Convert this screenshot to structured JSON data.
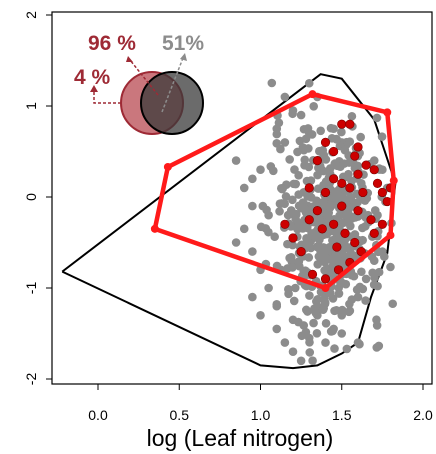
{
  "chart_data": {
    "type": "scatter",
    "title": "",
    "xlabel": "log (Leaf nitrogen)",
    "ylabel": "",
    "xlim": [
      -0.3,
      2.05
    ],
    "ylim": [
      -2.05,
      2.05
    ],
    "xticks": [
      "0.0",
      "0.5",
      "1.0",
      "1.5",
      "2.0"
    ],
    "yticks": [
      "-2",
      "-1",
      "0",
      "1",
      "2"
    ],
    "grid": false,
    "colors": {
      "grey_points": "#8c8c8c",
      "red_points": "#cc0000",
      "red_hull": "#ff1a1a",
      "black_hull": "#000000",
      "annot_red": "#9e2a35",
      "annot_grey": "#8c8c8c"
    },
    "series": [
      {
        "role": "grey points (bulk cloud, approximate)",
        "points": [
          [
            1.35,
            1.1
          ],
          [
            1.2,
            0.95
          ],
          [
            1.25,
            0.9
          ],
          [
            1.1,
            0.75
          ],
          [
            1.15,
            0.6
          ],
          [
            1.3,
            0.7
          ],
          [
            1.45,
            0.75
          ],
          [
            1.5,
            0.6
          ],
          [
            1.6,
            0.45
          ],
          [
            1.7,
            0.4
          ],
          [
            1.75,
            0.3
          ],
          [
            0.85,
            0.4
          ],
          [
            0.95,
            0.2
          ],
          [
            1.0,
            0.3
          ],
          [
            0.9,
            0.1
          ],
          [
            0.95,
            -0.1
          ],
          [
            1.05,
            -0.2
          ],
          [
            0.9,
            -0.35
          ],
          [
            0.85,
            -0.5
          ],
          [
            0.95,
            -0.6
          ],
          [
            1.0,
            -0.8
          ],
          [
            1.05,
            -1.0
          ],
          [
            0.95,
            -1.1
          ],
          [
            1.0,
            -1.3
          ],
          [
            1.1,
            -1.45
          ],
          [
            1.15,
            -1.6
          ],
          [
            1.2,
            -1.7
          ],
          [
            1.25,
            -1.8
          ],
          [
            1.3,
            -1.55
          ],
          [
            1.4,
            -1.6
          ],
          [
            1.45,
            -1.45
          ],
          [
            1.5,
            -1.3
          ],
          [
            1.55,
            -1.25
          ],
          [
            1.6,
            -1.1
          ],
          [
            1.65,
            -0.9
          ],
          [
            1.7,
            -0.7
          ],
          [
            1.75,
            -0.6
          ],
          [
            1.72,
            -0.2
          ],
          [
            1.78,
            0.1
          ],
          [
            1.15,
            1.1
          ],
          [
            1.3,
            1.25
          ],
          [
            1.1,
            -1.2
          ],
          [
            1.2,
            -1.35
          ],
          [
            1.35,
            -1.3
          ],
          [
            1.5,
            -1.5
          ],
          [
            1.6,
            -1.6
          ]
        ]
      },
      {
        "role": "red points (subset, approximate)",
        "points": [
          [
            1.5,
            0.8
          ],
          [
            1.55,
            0.8
          ],
          [
            1.45,
            0.5
          ],
          [
            1.6,
            0.55
          ],
          [
            1.65,
            0.35
          ],
          [
            1.7,
            0.3
          ],
          [
            1.72,
            0.15
          ],
          [
            1.75,
            0.05
          ],
          [
            1.78,
            -0.05
          ],
          [
            1.8,
            0.1
          ],
          [
            1.6,
            0.25
          ],
          [
            1.55,
            0.1
          ],
          [
            1.5,
            0.15
          ],
          [
            1.45,
            0.2
          ],
          [
            1.4,
            0.05
          ],
          [
            1.35,
            -0.15
          ],
          [
            1.3,
            -0.25
          ],
          [
            1.38,
            -0.35
          ],
          [
            1.45,
            -0.3
          ],
          [
            1.52,
            -0.4
          ],
          [
            1.58,
            -0.5
          ],
          [
            1.62,
            -0.6
          ],
          [
            1.55,
            -0.72
          ],
          [
            1.48,
            -0.8
          ],
          [
            1.4,
            -0.9
          ],
          [
            1.32,
            -0.85
          ],
          [
            1.25,
            -0.6
          ],
          [
            1.2,
            -0.45
          ],
          [
            1.15,
            -0.3
          ],
          [
            1.35,
            0.4
          ],
          [
            1.5,
            -0.1
          ],
          [
            1.6,
            -0.15
          ],
          [
            1.68,
            -0.25
          ],
          [
            1.7,
            -0.4
          ],
          [
            1.63,
            0.05
          ],
          [
            1.4,
            0.6
          ],
          [
            1.47,
            -0.55
          ],
          [
            1.58,
            0.45
          ],
          [
            1.3,
            0.1
          ],
          [
            1.75,
            -0.3
          ]
        ]
      }
    ],
    "red_hull": [
      [
        0.35,
        -0.35
      ],
      [
        0.43,
        0.33
      ],
      [
        1.32,
        1.13
      ],
      [
        1.78,
        0.93
      ],
      [
        1.82,
        0.18
      ],
      [
        1.8,
        -0.42
      ],
      [
        1.4,
        -1.0
      ]
    ],
    "black_hull": [
      [
        -0.22,
        -0.82
      ],
      [
        1.37,
        1.35
      ],
      [
        1.5,
        1.3
      ],
      [
        1.7,
        0.85
      ],
      [
        1.83,
        0.15
      ],
      [
        1.78,
        -0.62
      ],
      [
        1.68,
        -1.1
      ],
      [
        1.6,
        -1.6
      ],
      [
        1.5,
        -1.72
      ],
      [
        1.35,
        -1.85
      ],
      [
        1.2,
        -1.88
      ],
      [
        1.0,
        -1.85
      ],
      [
        -0.22,
        -0.82
      ]
    ]
  },
  "annotations": {
    "pct_96": "96 %",
    "pct_51": "51%",
    "pct_4": "4 %"
  }
}
